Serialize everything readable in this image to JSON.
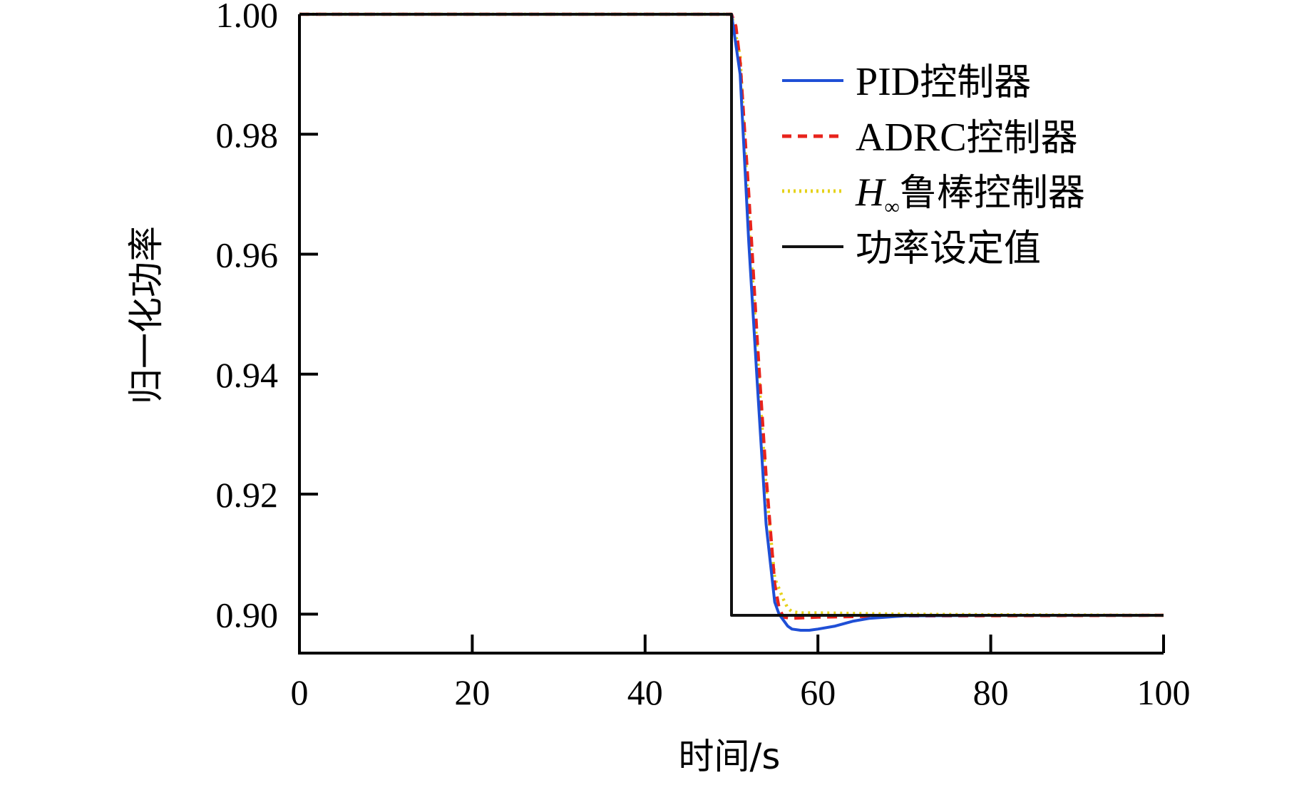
{
  "chart_data": {
    "type": "line",
    "title": "",
    "xlabel": "时间/s",
    "ylabel": "归一化功率",
    "xlim": [
      0,
      100
    ],
    "ylim": [
      0.8935,
      1.0
    ],
    "xticks": [
      0,
      20,
      40,
      60,
      80,
      100
    ],
    "xtick_labels": [
      "0",
      "20",
      "40",
      "60",
      "80",
      "100"
    ],
    "yticks": [
      0.9,
      0.92,
      0.94,
      0.96,
      0.98,
      1.0
    ],
    "ytick_labels": [
      "0.90",
      "0.92",
      "0.94",
      "0.96",
      "0.98",
      "1.00"
    ],
    "grid": false,
    "legend_position": "top-right",
    "series": [
      {
        "name": "PID控制器",
        "legend_text": "PID",
        "legend_suffix": "控制器",
        "color": "#1f4fd6",
        "dash": "solid",
        "x": [
          0,
          50,
          51,
          52,
          53,
          54,
          55,
          55.5,
          56,
          56.5,
          57,
          58,
          59,
          60,
          62,
          64,
          66,
          70,
          80,
          100
        ],
        "y": [
          1.0,
          1.0,
          0.99,
          0.962,
          0.938,
          0.915,
          0.902,
          0.9,
          0.899,
          0.898,
          0.8975,
          0.8973,
          0.8973,
          0.8975,
          0.898,
          0.8988,
          0.8993,
          0.8997,
          0.8998,
          0.8998
        ]
      },
      {
        "name": "ADRC控制器",
        "legend_text": "ADRC",
        "legend_suffix": "控制器",
        "color": "#e8231c",
        "dash": "dashed",
        "x": [
          0,
          50,
          50.5,
          51,
          52,
          53,
          54,
          55,
          55.5,
          56,
          57,
          60,
          70,
          100
        ],
        "y": [
          1.0,
          1.0,
          0.998,
          0.992,
          0.97,
          0.945,
          0.923,
          0.905,
          0.901,
          0.8995,
          0.8993,
          0.8995,
          0.8997,
          0.8998
        ]
      },
      {
        "name": "H∞鲁棒控制器",
        "legend_text": "H",
        "legend_sub": "∞",
        "legend_suffix": "鲁棒控制器",
        "color": "#e6d21a",
        "dash": "dotted",
        "x": [
          0,
          50,
          51,
          52,
          53,
          54,
          55,
          56,
          56.5,
          57,
          58,
          60,
          65,
          70,
          80,
          100
        ],
        "y": [
          1.0,
          1.0,
          0.993,
          0.966,
          0.943,
          0.921,
          0.906,
          0.9025,
          0.901,
          0.9004,
          0.9002,
          0.9002,
          0.9001,
          0.9,
          0.8999,
          0.8998
        ]
      },
      {
        "name": "功率设定值",
        "legend_text": "",
        "legend_suffix": "功率设定值",
        "color": "#111111",
        "dash": "solid",
        "x": [
          0,
          50,
          50,
          100
        ],
        "y": [
          1.0,
          1.0,
          0.8998,
          0.8998
        ]
      }
    ]
  }
}
